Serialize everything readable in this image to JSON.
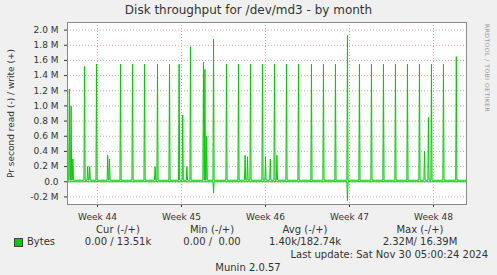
{
  "chart_data": {
    "type": "line",
    "title": "Disk throughput for /dev/md3 - by month",
    "y_label": "Pr second read (-) / write (+)",
    "xlim": [
      0,
      33.25
    ],
    "xticks": [
      {
        "value": 2.5,
        "label": "Week 44"
      },
      {
        "value": 9.5,
        "label": "Week 45"
      },
      {
        "value": 16.5,
        "label": "Week 46"
      },
      {
        "value": 23.5,
        "label": "Week 47"
      },
      {
        "value": 30.5,
        "label": "Week 48"
      }
    ],
    "ylim": [
      -0.3,
      2.1
    ],
    "yticks": [
      {
        "value": -0.2,
        "label": "-0.2 M"
      },
      {
        "value": 0,
        "label": "0.0"
      },
      {
        "value": 0.2,
        "label": "0.2 M"
      },
      {
        "value": 0.4,
        "label": "0.4 M"
      },
      {
        "value": 0.6,
        "label": "0.6 M"
      },
      {
        "value": 0.8,
        "label": "0.8 M"
      },
      {
        "value": 1.0,
        "label": "1.0 M"
      },
      {
        "value": 1.2,
        "label": "1.2 M"
      },
      {
        "value": 1.4,
        "label": "1.4 M"
      },
      {
        "value": 1.6,
        "label": "1.6 M"
      },
      {
        "value": 1.8,
        "label": "1.8 M"
      },
      {
        "value": 2.0,
        "label": "2.0 M"
      }
    ],
    "grid": true,
    "series": [
      {
        "name": "Bytes",
        "color": "#00cc00",
        "x": [
          0,
          0.1,
          0.15,
          0.2,
          0.25,
          0.3,
          0.35,
          0.4,
          0.45,
          0.5,
          1.37,
          1.42,
          1.47,
          1.63,
          1.68,
          1.73,
          1.8,
          1.85,
          1.9,
          2.37,
          2.42,
          2.47,
          3.3,
          3.35,
          3.4,
          3.45,
          3.5,
          3.55,
          4.37,
          4.42,
          4.47,
          5.37,
          5.42,
          5.47,
          6.37,
          6.42,
          6.47,
          7.25,
          7.3,
          7.35,
          7.45,
          7.5,
          7.55,
          8.45,
          8.5,
          8.55,
          9.25,
          9.3,
          9.35,
          9.55,
          9.6,
          9.65,
          9.9,
          9.95,
          10.0,
          10.2,
          10.25,
          10.3,
          11.28,
          11.33,
          11.38,
          11.4,
          11.45,
          11.5,
          11.55,
          11.6,
          11.65,
          12.12,
          12.17,
          12.22,
          13.2,
          13.25,
          13.3,
          14.2,
          14.25,
          14.3,
          14.75,
          14.8,
          14.85,
          14.95,
          15.0,
          15.05,
          15.2,
          15.25,
          15.3,
          16.2,
          16.25,
          16.3,
          16.45,
          16.5,
          16.55,
          16.85,
          16.9,
          16.95,
          17.2,
          17.25,
          17.3,
          17.4,
          17.45,
          17.5,
          18.2,
          18.25,
          18.3,
          19.2,
          19.25,
          19.3,
          20.28,
          20.33,
          20.38,
          21.28,
          21.33,
          21.38,
          22.28,
          22.33,
          22.38,
          23.28,
          23.33,
          23.38,
          24.28,
          24.33,
          24.38,
          25.28,
          25.33,
          25.38,
          26.28,
          26.33,
          26.38,
          27.28,
          27.33,
          27.38,
          28.28,
          28.33,
          28.38,
          29.28,
          29.33,
          29.38,
          29.7,
          29.75,
          29.8,
          30.03,
          30.08,
          30.13,
          30.28,
          30.33,
          30.38,
          31.28,
          31.33,
          31.38,
          32.35,
          32.4,
          32.45,
          33.2
        ],
        "values": [
          0.02,
          0.02,
          1.22,
          0.02,
          0.02,
          1.0,
          0.02,
          0.02,
          0.3,
          0.02,
          0.02,
          1.52,
          0.02,
          0.02,
          0.2,
          0.02,
          0.02,
          0.2,
          0.02,
          0.02,
          1.55,
          0.02,
          0.02,
          0.35,
          0.02,
          0.02,
          0.3,
          0.02,
          0.02,
          1.55,
          0.02,
          0.02,
          1.55,
          0.02,
          0.02,
          1.55,
          0.02,
          0.02,
          0.2,
          0.02,
          0.02,
          1.55,
          0.02,
          0.02,
          1.55,
          0.02,
          0.02,
          1.55,
          0.02,
          0.02,
          0.88,
          0.02,
          0.02,
          0.2,
          0.02,
          0.02,
          1.78,
          0.02,
          0.02,
          1.58,
          0.02,
          0.02,
          1.48,
          0.02,
          0.02,
          0.6,
          0.02,
          0.02,
          1.88,
          0.02,
          0.02,
          1.55,
          0.02,
          0.02,
          1.55,
          0.02,
          0.02,
          0.35,
          0.02,
          0.02,
          0.33,
          0.02,
          0.02,
          1.55,
          0.02,
          0.02,
          1.55,
          0.02,
          0.02,
          0.33,
          0.02,
          0.02,
          0.3,
          0.02,
          0.02,
          1.55,
          0.02,
          0.02,
          0.35,
          0.02,
          0.02,
          1.55,
          0.02,
          0.02,
          1.55,
          0.02,
          0.02,
          1.55,
          0.02,
          0.02,
          1.55,
          0.02,
          0.02,
          1.55,
          0.02,
          0.02,
          1.93,
          0.02,
          0.02,
          1.55,
          0.02,
          0.02,
          1.55,
          0.02,
          0.02,
          1.55,
          0.02,
          0.02,
          1.55,
          0.02,
          0.02,
          1.55,
          0.02,
          0.02,
          1.55,
          0.02,
          0.02,
          0.4,
          0.02,
          0.02,
          0.85,
          0.02,
          0.02,
          1.55,
          0.02,
          0.02,
          1.55,
          0.02,
          0.02,
          1.65,
          0.02,
          0.02
        ],
        "read_x": [
          0,
          12.12,
          12.17,
          12.22,
          23.28,
          23.33,
          23.38,
          33.2
        ],
        "read_values": [
          0,
          0,
          -0.15,
          0,
          0,
          -0.25,
          0,
          0
        ]
      }
    ],
    "legend_columns": [
      "Cur (-/+)",
      "Min (-/+)",
      "Avg (-/+)",
      "Max (-/+)"
    ],
    "legend_stats": [
      "0.00 / 13.51k",
      "0.00 /  0.00",
      "1.40k/182.74k",
      "2.32M/ 16.39M"
    ],
    "footer": [
      "Last update: Sat Nov 30 05:00:24 2024",
      "Munin 2.0.57"
    ],
    "watermark": "RRDTOOL / TOBI OETIKER"
  }
}
